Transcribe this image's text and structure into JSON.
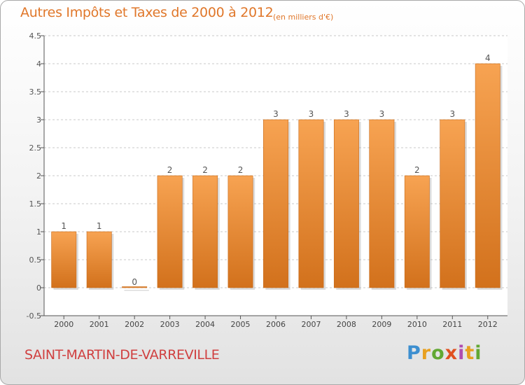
{
  "title": "Autres Impôts et Taxes de 2000 à 2012",
  "subtitle": "(en milliers d'€)",
  "commune": "SAINT-MARTIN-DE-VARREVILLE",
  "logo": {
    "p": "P",
    "r": "r",
    "o": "o",
    "x": "x",
    "i1": "i",
    "t": "t",
    "i2": "i"
  },
  "colors": {
    "bar_top": "#f7a352",
    "bar_bottom": "#d2711c",
    "title": "#e0772a",
    "commune": "#d04040",
    "grid": "#c8c8c8"
  },
  "chart_data": {
    "type": "bar",
    "categories": [
      "2000",
      "2001",
      "2002",
      "2003",
      "2004",
      "2005",
      "2006",
      "2007",
      "2008",
      "2009",
      "2010",
      "2011",
      "2012"
    ],
    "values": [
      1,
      1,
      0,
      2,
      2,
      2,
      3,
      3,
      3,
      3,
      2,
      3,
      4
    ],
    "value_labels": [
      "1",
      "1",
      "0",
      "2",
      "2",
      "2",
      "3",
      "3",
      "3",
      "3",
      "2",
      "3",
      "4"
    ],
    "title": "Autres Impôts et Taxes de 2000 à 2012",
    "subtitle": "(en milliers d'€)",
    "ylim": [
      -0.5,
      4.5
    ],
    "yticks": [
      -0.5,
      0,
      0.5,
      1,
      1.5,
      2,
      2.5,
      3,
      3.5,
      4,
      4.5
    ],
    "ytick_labels": [
      "-0.5",
      "0",
      "0.5",
      "1",
      "1.5",
      "2",
      "2.5",
      "3",
      "3.5",
      "4",
      "4.5"
    ],
    "grid": "horizontal-dashed",
    "legend": "none"
  }
}
